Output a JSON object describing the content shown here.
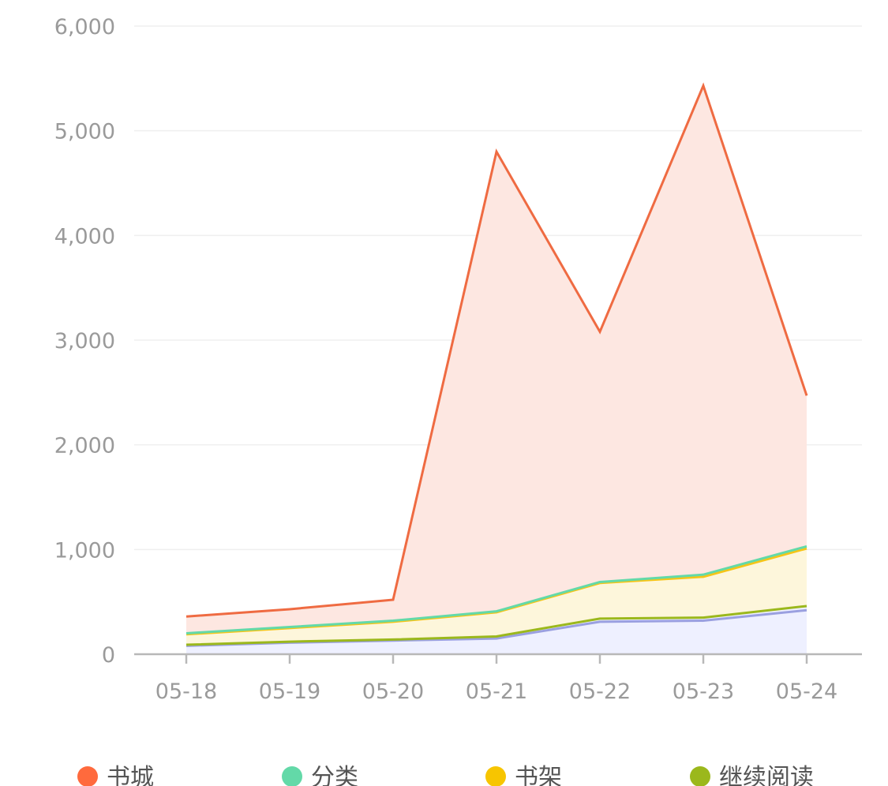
{
  "chart_data": {
    "type": "area",
    "stacked": true,
    "categories": [
      "05-18",
      "05-19",
      "05-20",
      "05-21",
      "05-22",
      "05-23",
      "05-24"
    ],
    "ylim": [
      0,
      6000
    ],
    "yticks": [
      0,
      1000,
      2000,
      3000,
      4000,
      5000,
      6000
    ],
    "ytick_labels": [
      "0",
      "1,000",
      "2,000",
      "3,000",
      "4,000",
      "5,000",
      "6,000"
    ],
    "grid": true,
    "legend_position": "bottom",
    "series": [
      {
        "name": "",
        "color": "#9aa0e0",
        "fill": "#eef0ff",
        "values": [
          80,
          110,
          130,
          150,
          310,
          320,
          420
        ]
      },
      {
        "name": "继续阅读",
        "color": "#9bb81c",
        "fill": "#eef0ff",
        "values": [
          10,
          10,
          10,
          20,
          30,
          30,
          40
        ]
      },
      {
        "name": "书架",
        "color": "#f5c518",
        "fill": "#fdf6db",
        "values": [
          100,
          130,
          170,
          230,
          340,
          390,
          550
        ]
      },
      {
        "name": "分类",
        "color": "#63d9a8",
        "fill": "#eaf8f0",
        "values": [
          10,
          10,
          10,
          10,
          10,
          20,
          20
        ]
      },
      {
        "name": "书城",
        "color": "#ef6b42",
        "fill": "#fde7e1",
        "values": [
          160,
          170,
          200,
          4390,
          2390,
          4670,
          1440
        ]
      }
    ],
    "legend": [
      {
        "name": "书城",
        "color": "#ff6a3d"
      },
      {
        "name": "分类",
        "color": "#63d9a8"
      },
      {
        "name": "书架",
        "color": "#f7c500"
      },
      {
        "name": "继续阅读",
        "color": "#9bb81c"
      }
    ]
  }
}
